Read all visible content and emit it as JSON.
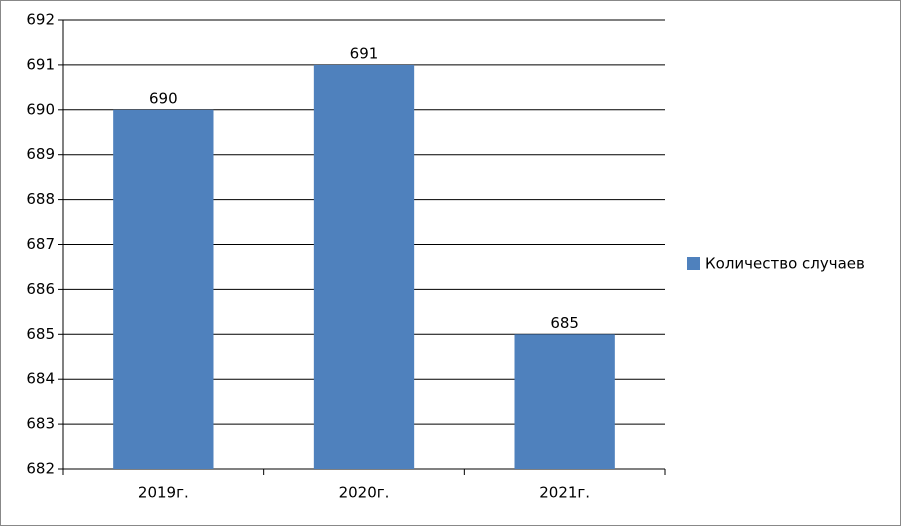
{
  "chart_data": {
    "type": "bar",
    "categories": [
      "2019г.",
      "2020г.",
      "2021г."
    ],
    "series": [
      {
        "name": "Количество случаев",
        "color": "#4f81bd",
        "values": [
          690,
          691,
          685
        ]
      }
    ],
    "ylim": [
      682,
      692
    ],
    "yticks": [
      682,
      683,
      684,
      685,
      686,
      687,
      688,
      689,
      690,
      691,
      692
    ],
    "grid": true,
    "data_labels": true,
    "legend": "right"
  }
}
